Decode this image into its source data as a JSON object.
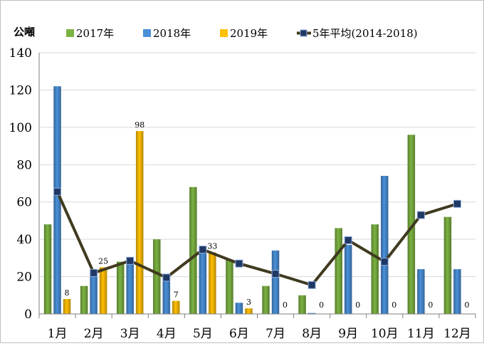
{
  "chart_data": {
    "type": "bar",
    "unit_label": "公噸",
    "categories": [
      "1月",
      "2月",
      "3月",
      "4月",
      "5月",
      "6月",
      "7月",
      "8月",
      "9月",
      "10月",
      "11月",
      "12月"
    ],
    "ylim": [
      0,
      140
    ],
    "yticks": [
      0,
      20,
      40,
      60,
      80,
      100,
      120,
      140
    ],
    "grid": true,
    "legend_position": "top",
    "series": [
      {
        "name": "2017年",
        "kind": "bar",
        "color": "#7cb342",
        "values": [
          48,
          15,
          28,
          40,
          68,
          29,
          15,
          10,
          46,
          48,
          96,
          52
        ]
      },
      {
        "name": "2018年",
        "kind": "bar",
        "color": "#4a90d9",
        "values": [
          122,
          22,
          29,
          20,
          35,
          6,
          34,
          0.5,
          37,
          74,
          24,
          24
        ]
      },
      {
        "name": "2019年",
        "kind": "bar",
        "color": "#ffc000",
        "values": [
          8,
          25,
          98,
          7,
          33,
          3,
          0,
          0,
          0,
          0,
          0,
          0
        ],
        "data_labels": [
          "8",
          "25",
          "98",
          "7",
          "33",
          "3",
          "0",
          "0",
          "0",
          "0",
          "0",
          "0"
        ]
      },
      {
        "name": "5年平均(2014-2018)",
        "kind": "line",
        "color": "#403a1f",
        "marker_color": "#1f3864",
        "values": [
          65.5,
          22,
          28.5,
          19.5,
          34.5,
          27,
          21.5,
          15.5,
          39.5,
          28,
          53,
          59
        ]
      }
    ]
  }
}
